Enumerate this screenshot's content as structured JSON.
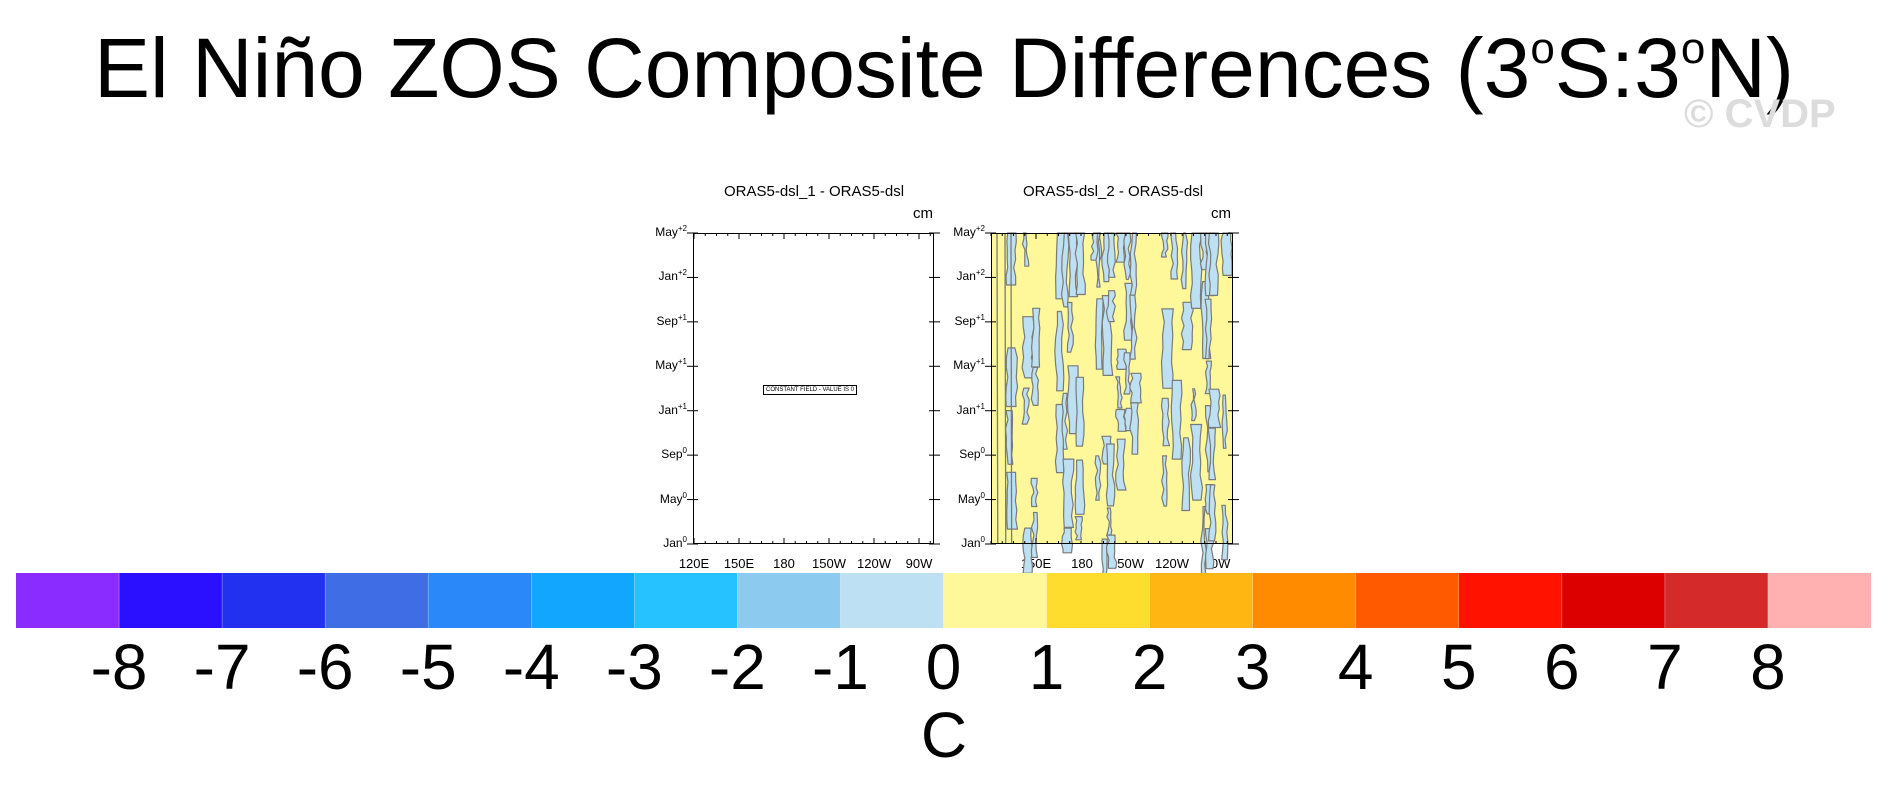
{
  "title": {
    "text": "El Niño ZOS Composite Differences (3",
    "deg1": "o",
    "mid": "S:3",
    "deg2": "o",
    "end": "N)"
  },
  "watermark": "© CVDP",
  "chart_data": [
    {
      "type": "heatmap",
      "title": "ORAS5-dsl_1 - ORAS5-dsl",
      "unit": "cm",
      "x_ticks": [
        "120E",
        "150E",
        "180",
        "150W",
        "120W",
        "90W"
      ],
      "y_ticks": [
        {
          "month": "Jan",
          "year": "0"
        },
        {
          "month": "May",
          "year": "0"
        },
        {
          "month": "Sep",
          "year": "0"
        },
        {
          "month": "Jan",
          "year": "+1"
        },
        {
          "month": "May",
          "year": "+1"
        },
        {
          "month": "Sep",
          "year": "+1"
        },
        {
          "month": "Jan",
          "year": "+2"
        },
        {
          "month": "May",
          "year": "+2"
        }
      ],
      "annotation": "CONSTANT FIELD - VALUE IS 0",
      "field": "constant",
      "value": 0
    },
    {
      "type": "heatmap",
      "title": "ORAS5-dsl_2 - ORAS5-dsl",
      "unit": "cm",
      "x_ticks": [
        "150E",
        "180",
        "150W",
        "120W",
        "90W"
      ],
      "y_ticks": [
        {
          "month": "Jan",
          "year": "0"
        },
        {
          "month": "May",
          "year": "0"
        },
        {
          "month": "Sep",
          "year": "0"
        },
        {
          "month": "Jan",
          "year": "+1"
        },
        {
          "month": "May",
          "year": "+1"
        },
        {
          "month": "Sep",
          "year": "+1"
        },
        {
          "month": "Jan",
          "year": "+2"
        },
        {
          "month": "May",
          "year": "+2"
        }
      ],
      "field": "small noise between -1 and 1",
      "value_range": [
        -1,
        1
      ]
    }
  ],
  "colorbar": {
    "label": "C",
    "ticks": [
      "-8",
      "-7",
      "-6",
      "-5",
      "-4",
      "-3",
      "-2",
      "-1",
      "0",
      "1",
      "2",
      "3",
      "4",
      "5",
      "6",
      "7",
      "8"
    ],
    "colors": [
      "#8a2bff",
      "#2a10ff",
      "#2230f0",
      "#3e6de6",
      "#2a88f8",
      "#12a6ff",
      "#26c2ff",
      "#8ccbef",
      "#bde0f2",
      "#fff89a",
      "#ffdd2e",
      "#ffb612",
      "#ff8c00",
      "#ff5a00",
      "#ff1200",
      "#dc0000",
      "#d42a2a",
      "#ffb0b0"
    ]
  }
}
